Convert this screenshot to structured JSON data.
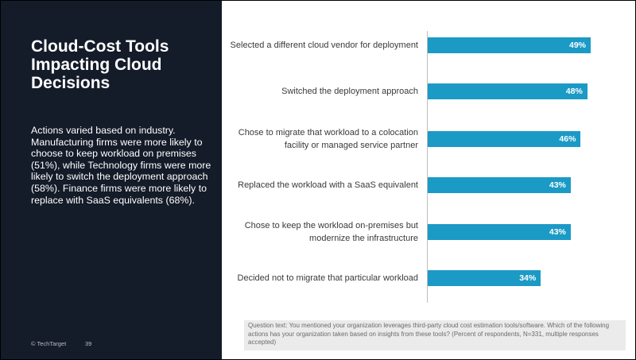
{
  "slide": {
    "title": "Cloud-Cost Tools Impacting Cloud Decisions",
    "body": "Actions varied based on industry. Manufacturing firms were more likely to choose to keep workload on premises (51%), while Technology firms were more likely to switch the deployment approach (58%). Finance firms were more likely to replace with SaaS equivalents (68%).",
    "footer": "© TechTarget",
    "page_number": "39",
    "question": "Question text: You mentioned your organization leverages third-party cloud cost estimation tools/software. Which of the following actions has your organization taken based on insights from these tools? (Percent of respondents, N=331, multiple responses accepted)"
  },
  "chart_data": {
    "type": "bar",
    "orientation": "horizontal",
    "categories": [
      "Selected a different cloud vendor for deployment",
      "Switched the deployment approach",
      "Chose to migrate that workload to a colocation facility or managed service partner",
      "Replaced the workload with a SaaS equivalent",
      "Chose to keep the workload on-premises but modernize the infrastructure",
      "Decided not to migrate that particular workload"
    ],
    "values": [
      49,
      48,
      46,
      43,
      43,
      34
    ],
    "value_labels": [
      "49%",
      "48%",
      "46%",
      "43%",
      "43%",
      "34%"
    ],
    "color": "#1b9ac6"
  }
}
